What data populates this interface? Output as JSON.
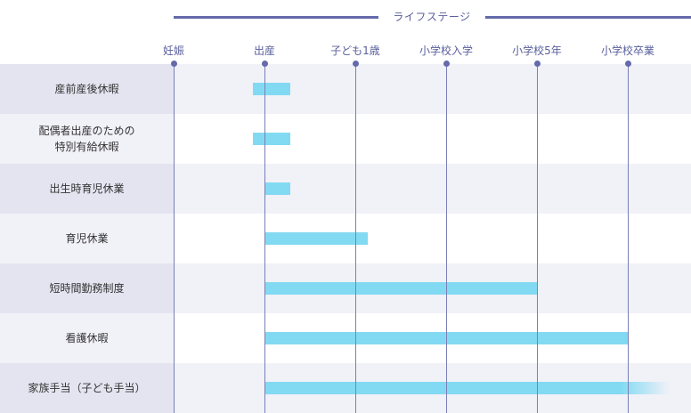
{
  "header": {
    "title": "ライフステージ"
  },
  "stages": [
    {
      "key": "pregnancy",
      "label": "妊娠"
    },
    {
      "key": "birth",
      "label": "出産"
    },
    {
      "key": "age1",
      "label": "子ども1歳"
    },
    {
      "key": "elementary_entry",
      "label": "小学校入学"
    },
    {
      "key": "elementary_grade5",
      "label": "小学校5年"
    },
    {
      "key": "elementary_graduation",
      "label": "小学校卒業"
    }
  ],
  "rows": [
    {
      "label": "産前産後休暇",
      "span": {
        "start": "around birth",
        "end": "shortly after birth"
      }
    },
    {
      "label": "配偶者出産のための\n特別有給休暇",
      "span": {
        "start": "around birth",
        "end": "shortly after birth"
      }
    },
    {
      "label": "出生時育児休業",
      "span": {
        "start": "birth",
        "end": "shortly after birth"
      }
    },
    {
      "label": "育児休業",
      "span": {
        "start": "birth",
        "end": "past age 1"
      }
    },
    {
      "label": "短時間勤務制度",
      "span": {
        "start": "birth",
        "end": "elementary grade 5"
      }
    },
    {
      "label": "看護休暇",
      "span": {
        "start": "birth",
        "end": "elementary graduation"
      }
    },
    {
      "label": "家族手当（子ども手当）",
      "span": {
        "start": "birth",
        "end": "beyond elementary graduation (fades)"
      }
    }
  ]
}
